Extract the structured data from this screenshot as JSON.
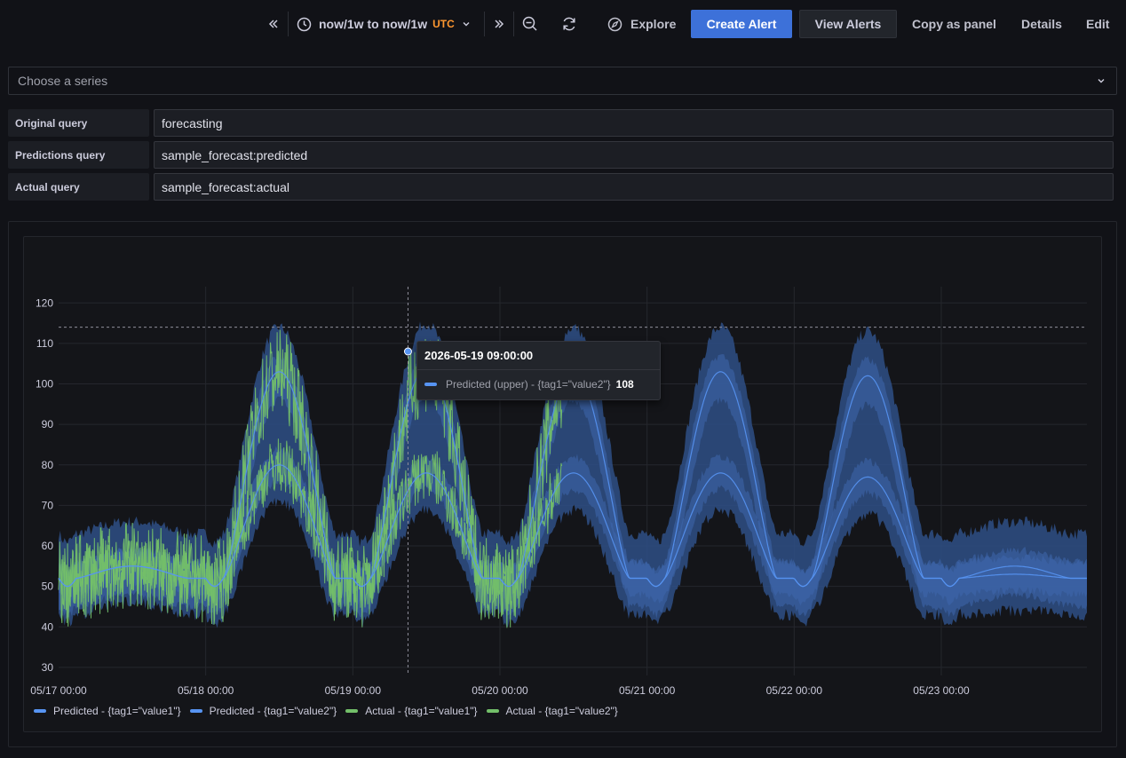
{
  "toolbar": {
    "time_range": "now/1w to now/1w",
    "timezone": "UTC",
    "explore_label": "Explore",
    "create_alert_label": "Create Alert",
    "view_alerts_label": "View Alerts",
    "copy_panel_label": "Copy as panel",
    "details_label": "Details",
    "edit_label": "Edit"
  },
  "series_select": {
    "placeholder": "Choose a series"
  },
  "queries": [
    {
      "label": "Original query",
      "value": "forecasting"
    },
    {
      "label": "Predictions query",
      "value": "sample_forecast:predicted"
    },
    {
      "label": "Actual query",
      "value": "sample_forecast:actual"
    }
  ],
  "tooltip": {
    "time": "2026-05-19 09:00:00",
    "series": "Predicted (upper) - {tag1=\"value2\"}",
    "value": "108"
  },
  "colors": {
    "predicted": "#5794f2",
    "band": "#3a5c96",
    "actual": "#73bf69",
    "primary_button": "#3d71d9",
    "timezone": "#ff9830"
  },
  "chart_data": {
    "type": "line",
    "x_tick_labels": [
      "05/17 00:00",
      "05/18 00:00",
      "05/19 00:00",
      "05/20 00:00",
      "05/21 00:00",
      "05/22 00:00",
      "05/23 00:00"
    ],
    "y_ticks": [
      30,
      40,
      50,
      60,
      70,
      80,
      90,
      100,
      110,
      120
    ],
    "ylim": [
      28,
      124
    ],
    "xlim_days": [
      0,
      6.99
    ],
    "grid": true,
    "legend_placement": "bottom-left",
    "series": [
      {
        "name": "Predicted - {tag1=\"value1\"}",
        "color": "#5794f2",
        "kind": "predicted"
      },
      {
        "name": "Predicted - {tag1=\"value2\"}",
        "color": "#5794f2",
        "kind": "predicted"
      },
      {
        "name": "Actual - {tag1=\"value1\"}",
        "color": "#73bf69",
        "kind": "actual"
      },
      {
        "name": "Actual - {tag1=\"value2\"}",
        "color": "#73bf69",
        "kind": "actual"
      }
    ],
    "forecast_days": [
      {
        "day": 0,
        "peak1": 55,
        "peak2": 55
      },
      {
        "day": 1,
        "peak1": 103,
        "peak2": 80
      },
      {
        "day": 2,
        "peak1": 104,
        "peak2": 78
      },
      {
        "day": 3,
        "peak1": 103,
        "peak2": 78
      },
      {
        "day": 4,
        "peak1": 103,
        "peak2": 78
      },
      {
        "day": 5,
        "peak1": 102,
        "peak2": 77
      },
      {
        "day": 6,
        "peak1": 55,
        "peak2": 53
      }
    ],
    "actual_until_day": 3.42,
    "crosshair_value": 114,
    "hover_point": {
      "x": "2026-05-19 09:00:00",
      "y": 108
    }
  }
}
